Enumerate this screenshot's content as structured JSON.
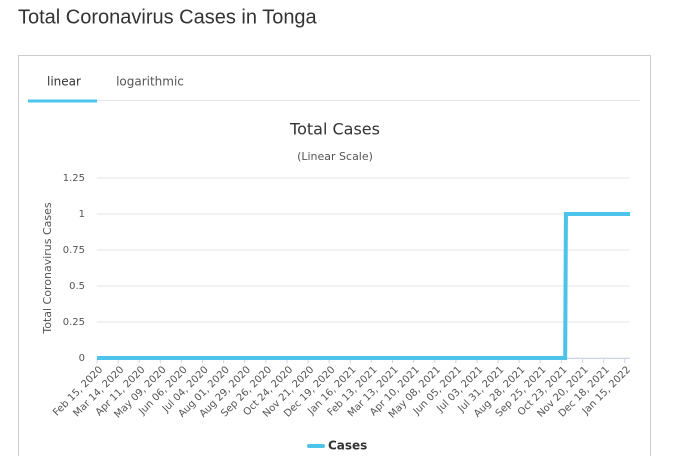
{
  "header": {
    "title": "Total Coronavirus Cases in Tonga"
  },
  "tabs": [
    "linear",
    "logarithmic"
  ],
  "chart_data": {
    "type": "line",
    "title": "Total Cases",
    "subtitle": "(Linear Scale)",
    "y_label": "Total Coronavirus Cases",
    "x": [
      "Feb 15, 2020",
      "Oct 28, 2021",
      "Oct 29, 2021",
      "Jan 22, 2022"
    ],
    "series": [
      {
        "name": "Cases",
        "color": "#4cc3e8",
        "values": [
          0,
          0,
          1,
          1
        ]
      }
    ],
    "xlim": [
      "Feb 15, 2020",
      "Jan 22, 2022"
    ],
    "xticks": [
      "Feb 15, 2020",
      "Mar 14, 2020",
      "Apr 11, 2020",
      "May 09, 2020",
      "Jun 06, 2020",
      "Jul 04, 2020",
      "Aug 01, 2020",
      "Aug 29, 2020",
      "Sep 26, 2020",
      "Oct 24, 2020",
      "Nov 21, 2020",
      "Dec 19, 2020",
      "Jan 16, 2021",
      "Feb 13, 2021",
      "Mar 13, 2021",
      "Apr 10, 2021",
      "May 08, 2021",
      "Jun 05, 2021",
      "Jul 03, 2021",
      "Jul 31, 2021",
      "Aug 28, 2021",
      "Sep 25, 2021",
      "Oct 23, 2021",
      "Nov 20, 2021",
      "Dec 18, 2021",
      "Jan 15, 2022"
    ],
    "ylim": [
      0,
      1.25
    ],
    "yticks": [
      0,
      0.25,
      0.5,
      0.75,
      1,
      1.25
    ],
    "grid": true
  }
}
